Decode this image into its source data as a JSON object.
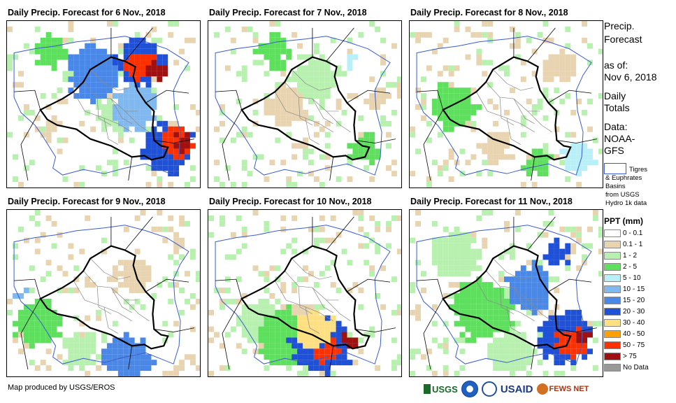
{
  "panels": [
    {
      "title": "Daily Precip. Forecast for 6 Nov., 2018"
    },
    {
      "title": "Daily Precip. Forecast for 7 Nov., 2018"
    },
    {
      "title": "Daily Precip. Forecast for 8 Nov., 2018"
    },
    {
      "title": "Daily Precip. Forecast for 9 Nov., 2018"
    },
    {
      "title": "Daily Precip. Forecast for 10 Nov., 2018"
    },
    {
      "title": "Daily Precip. Forecast for 11 Nov., 2018"
    }
  ],
  "side": {
    "title_line1": "Precip.",
    "title_line2": "Forecast",
    "asof_label": "as of:",
    "asof_date": "Nov 6, 2018",
    "daily1": "Daily",
    "daily2": "Totals",
    "data_label": "Data:",
    "data_src1": "NOAA-",
    "data_src2": "GFS",
    "basin_line1": "Tigres",
    "basin_line2": "& Euphrates",
    "basin_line3": "Basins",
    "basin_line4": "from USGS",
    "basin_line5": "Hydro 1k data"
  },
  "legend": {
    "title": "PPT (mm)",
    "items": [
      {
        "label": "0 - 0.1",
        "color": "#ffffff"
      },
      {
        "label": "0.1 - 1",
        "color": "#e8d4b0"
      },
      {
        "label": "1 - 2",
        "color": "#b8f0b0"
      },
      {
        "label": "2 - 5",
        "color": "#5ee05e"
      },
      {
        "label": "5 - 10",
        "color": "#b8f0f8"
      },
      {
        "label": "10 - 15",
        "color": "#80b8f0"
      },
      {
        "label": "15 - 20",
        "color": "#4a88e8"
      },
      {
        "label": "20 - 30",
        "color": "#1e50d8"
      },
      {
        "label": "30 - 40",
        "color": "#ffe080"
      },
      {
        "label": "40 - 50",
        "color": "#ffa000"
      },
      {
        "label": "50 - 75",
        "color": "#ff3000"
      },
      {
        "label": "> 75",
        "color": "#a01010"
      },
      {
        "label": "No Data",
        "color": "#999999"
      }
    ]
  },
  "credit": "Map produced by USGS/EROS",
  "logos": {
    "usgs": "USGS",
    "usaid": "USAID",
    "fews": "FEWS NET"
  }
}
